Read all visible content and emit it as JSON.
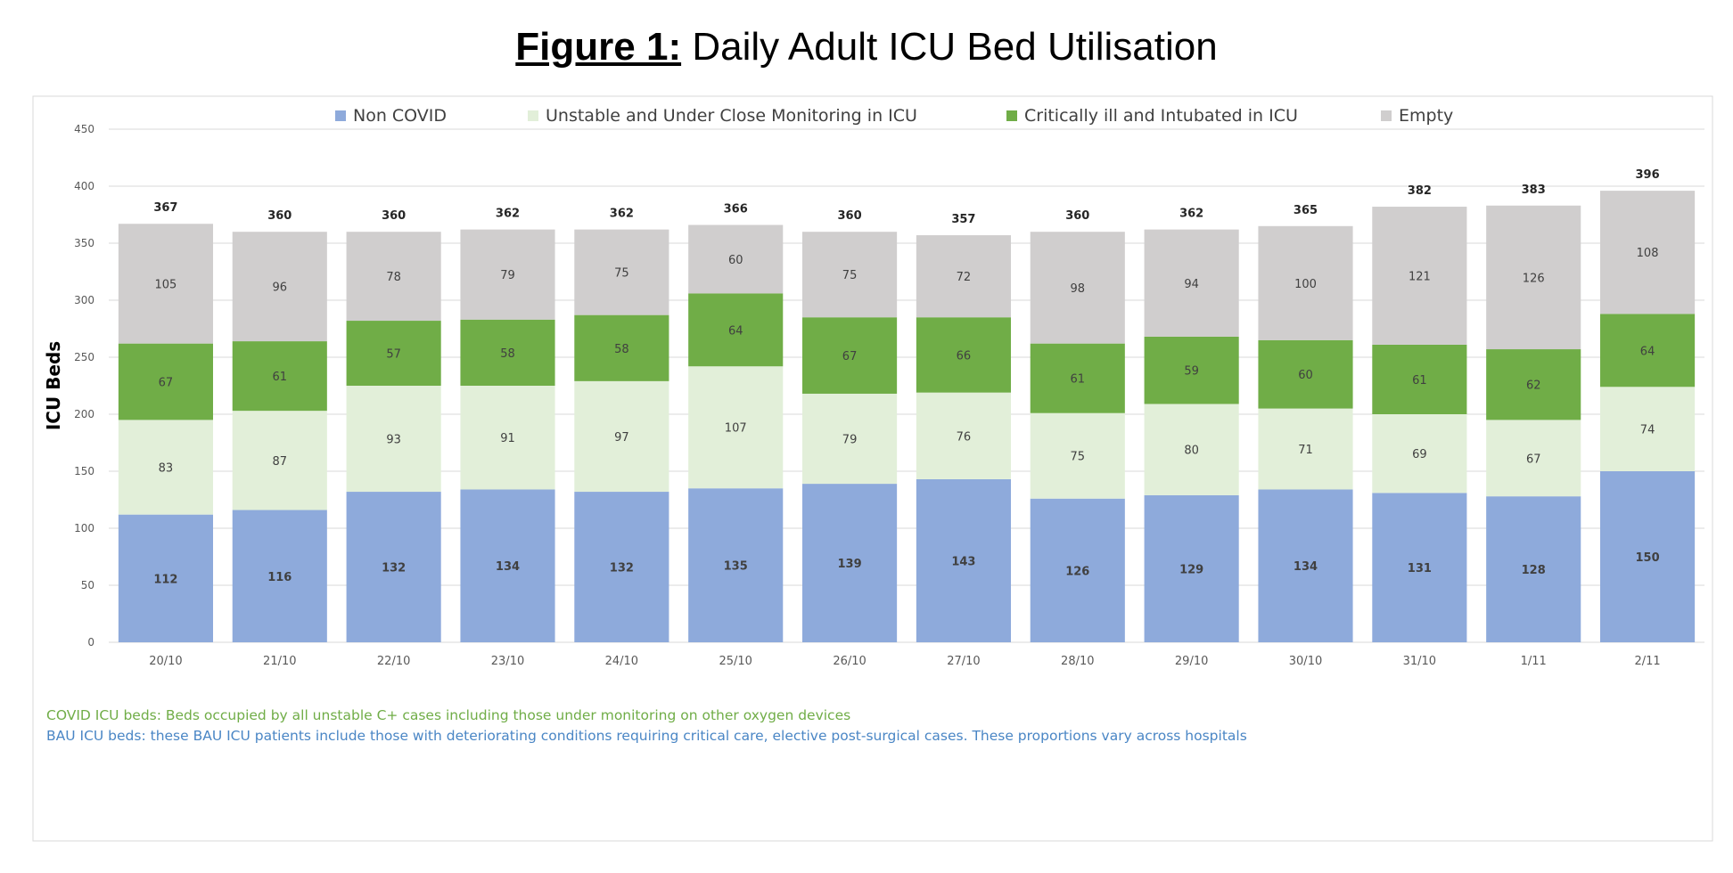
{
  "title": {
    "lead": "Figure 1:",
    "rest": " Daily Adult ICU Bed Utilisation"
  },
  "colors": {
    "series": [
      "#8eaadb",
      "#e2efd9",
      "#70ad47",
      "#d0cece"
    ],
    "note_green": "#70ad47",
    "note_blue": "#4a86c5"
  },
  "notes": {
    "covid": "COVID ICU beds: Beds occupied by all unstable C+ cases including those under monitoring on other oxygen devices",
    "bau": "BAU ICU beds: these BAU ICU patients include those with deteriorating conditions requiring critical care, elective post-surgical cases. These proportions vary across hospitals"
  },
  "chart_data": {
    "type": "bar",
    "stacked": true,
    "ylabel": "ICU Beds",
    "xlabel": "",
    "ylim": [
      0,
      450
    ],
    "yticks": [
      0,
      50,
      100,
      150,
      200,
      250,
      300,
      350,
      400,
      450
    ],
    "grid": true,
    "legend_position": "top",
    "categories": [
      "20/10",
      "21/10",
      "22/10",
      "23/10",
      "24/10",
      "25/10",
      "26/10",
      "27/10",
      "28/10",
      "29/10",
      "30/10",
      "31/10",
      "1/11",
      "2/11"
    ],
    "series": [
      {
        "name": "Non COVID",
        "values": [
          112,
          116,
          132,
          134,
          132,
          135,
          139,
          143,
          126,
          129,
          134,
          131,
          128,
          150
        ]
      },
      {
        "name": "Unstable and Under Close Monitoring in ICU",
        "values": [
          83,
          87,
          93,
          91,
          97,
          107,
          79,
          76,
          75,
          80,
          71,
          69,
          67,
          74
        ]
      },
      {
        "name": "Critically ill and Intubated in ICU",
        "values": [
          67,
          61,
          57,
          58,
          58,
          64,
          67,
          66,
          61,
          59,
          60,
          61,
          62,
          64
        ]
      },
      {
        "name": "Empty",
        "values": [
          105,
          96,
          78,
          79,
          75,
          60,
          75,
          72,
          98,
          94,
          100,
          121,
          126,
          108
        ]
      }
    ],
    "totals": [
      367,
      360,
      360,
      362,
      362,
      366,
      360,
      357,
      360,
      362,
      365,
      382,
      383,
      396
    ]
  }
}
